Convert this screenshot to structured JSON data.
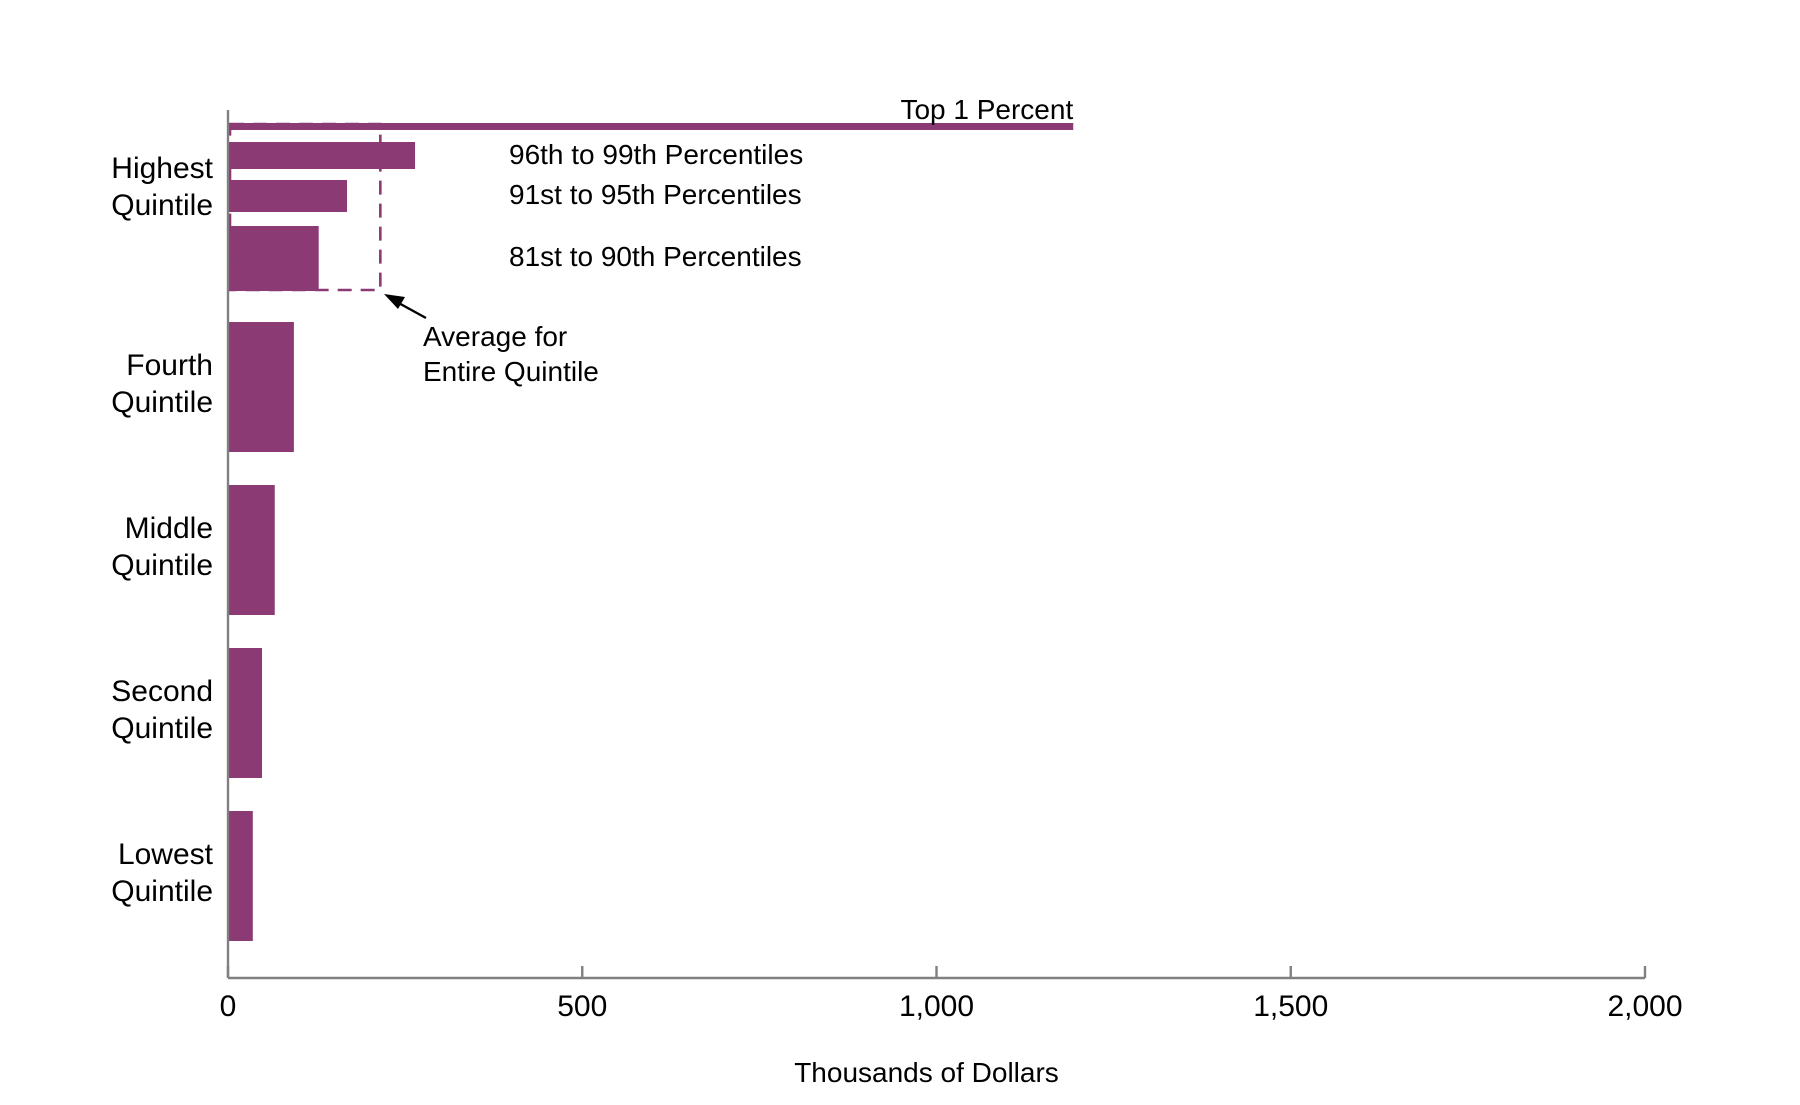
{
  "chart_data": {
    "type": "bar",
    "orientation": "horizontal",
    "title": "",
    "xlabel": "Thousands of Dollars",
    "ylabel": "",
    "xlim": [
      0,
      2000
    ],
    "xticks": [
      0,
      500,
      1000,
      1500,
      2000
    ],
    "xtick_labels": [
      "0",
      "500",
      "1,000",
      "1,500",
      "2,000"
    ],
    "grid": false,
    "legend": "none",
    "bar_color": "#8B3A74",
    "average_box_color": "#8B3A74",
    "quintiles": [
      {
        "label_line1": "Highest",
        "label_line2": "Quintile",
        "value": 215
      },
      {
        "label_line1": "Fourth",
        "label_line2": "Quintile",
        "value": 93
      },
      {
        "label_line1": "Middle",
        "label_line2": "Quintile",
        "value": 66
      },
      {
        "label_line1": "Second",
        "label_line2": "Quintile",
        "value": 48
      },
      {
        "label_line1": "Lowest",
        "label_line2": "Quintile",
        "value": 35
      }
    ],
    "highest_quintile_breakdown": [
      {
        "label": "Top 1 Percent",
        "value": 1193
      },
      {
        "label": "96th to 99th Percentiles",
        "value": 264
      },
      {
        "label": "91st to 95th Percentiles",
        "value": 168
      },
      {
        "label": "81st to 90th Percentiles",
        "value": 128
      }
    ],
    "annotation": {
      "line1": "Average for",
      "line2": "Entire Quintile"
    }
  }
}
